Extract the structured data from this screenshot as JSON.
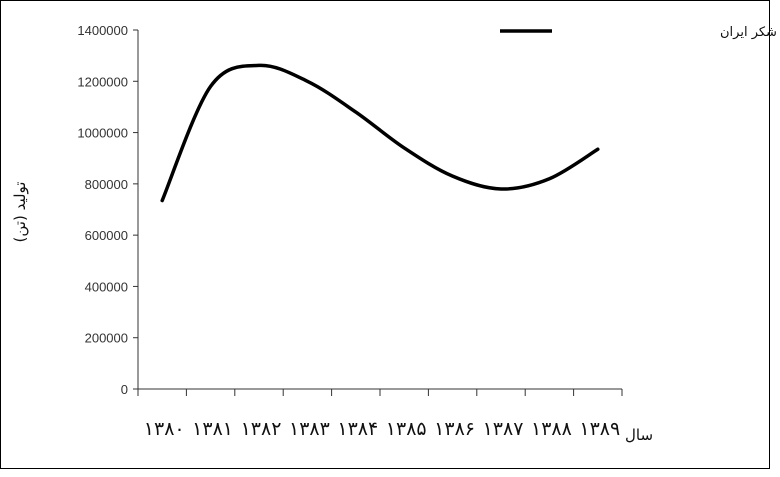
{
  "chart_data": {
    "type": "line",
    "title": "",
    "ylabel": "تولید (تن)",
    "xlabel": "سال",
    "ylim": [
      0,
      1400000
    ],
    "yticks": [
      "0",
      "200000",
      "400000",
      "600000",
      "800000",
      "1000000",
      "1200000",
      "1400000"
    ],
    "categories": [
      "۱۳۸۰",
      "۱۳۸۱",
      "۱۳۸۲",
      "۱۳۸۳",
      "۱۳۸۴",
      "۱۳۸۵",
      "۱۳۸۶",
      "۱۳۸۷",
      "۱۳۸۸",
      "۱۳۸۹"
    ],
    "series": [
      {
        "name": "کل صنایع قند و شکر ایران",
        "color": "#000000",
        "values": [
          735000,
          1180000,
          1262000,
          1200000,
          1080000,
          940000,
          830000,
          780000,
          820000,
          935000
        ]
      }
    ],
    "grid": false,
    "legend_position": "top-right"
  }
}
